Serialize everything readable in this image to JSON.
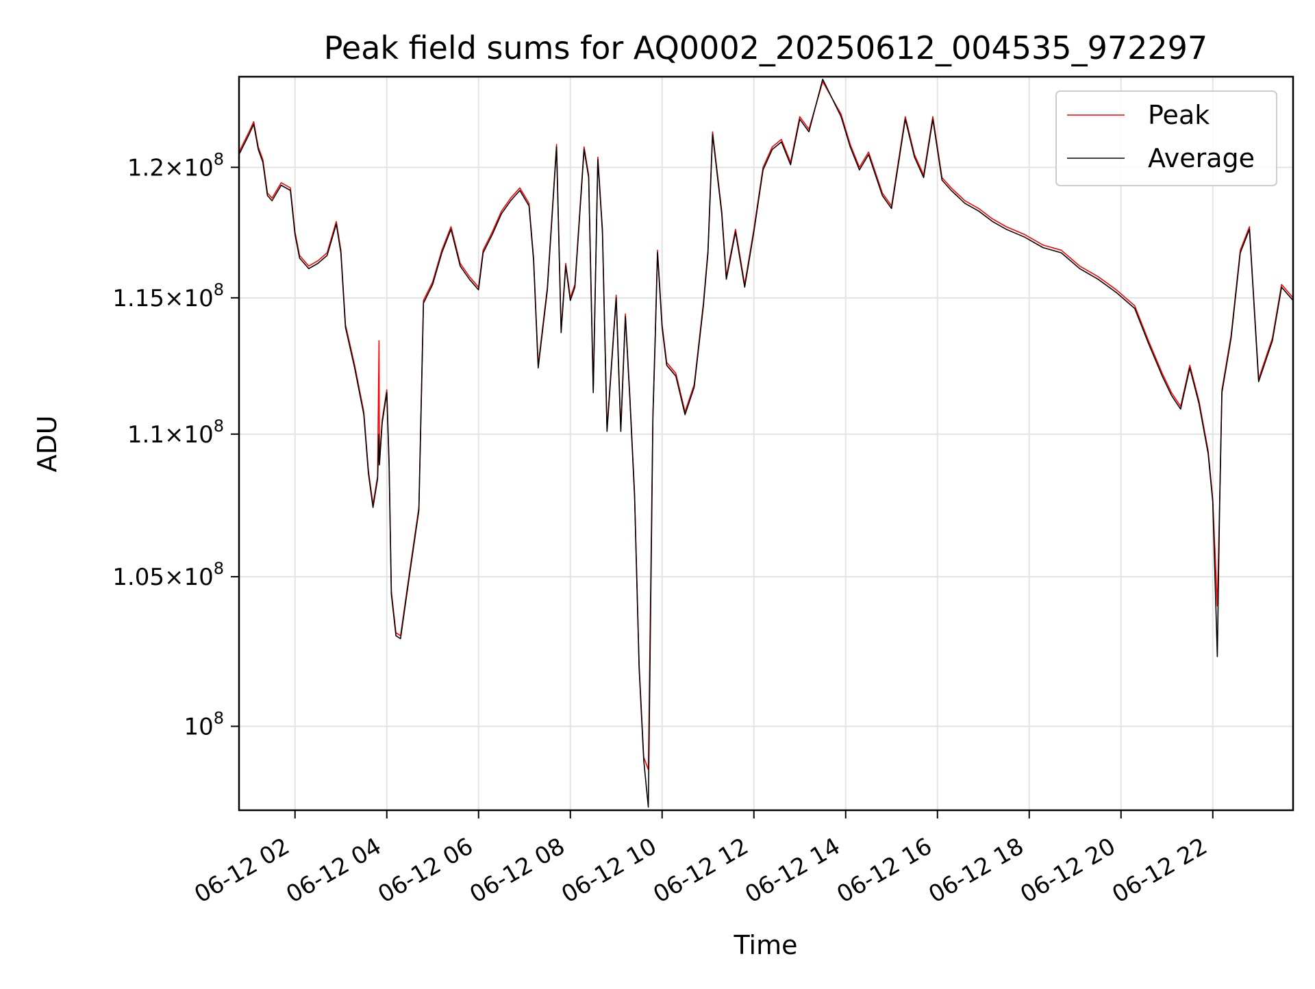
{
  "chart_data": {
    "type": "line",
    "title": "Peak field sums for AQ0002_20250612_004535_972297",
    "xlabel": "Time",
    "ylabel": "ADU",
    "x_tick_labels": [
      "06-12 02",
      "06-12 04",
      "06-12 06",
      "06-12 08",
      "06-12 10",
      "06-12 12",
      "06-12 14",
      "06-12 16",
      "06-12 18",
      "06-12 20",
      "06-12 22"
    ],
    "x_tick_hours": [
      2,
      4,
      6,
      8,
      10,
      12,
      14,
      16,
      18,
      20,
      22
    ],
    "xlim_hours": [
      0.78,
      23.75
    ],
    "y_scale": "log",
    "y_ticks": [
      {
        "value": 100000000,
        "mantissa": "",
        "exp": "8"
      },
      {
        "value": 105000000,
        "mantissa": "1.05",
        "exp": "8"
      },
      {
        "value": 110000000,
        "mantissa": "1.1",
        "exp": "8"
      },
      {
        "value": 115000000,
        "mantissa": "1.15",
        "exp": "8"
      },
      {
        "value": 120000000,
        "mantissa": "1.2",
        "exp": "8"
      }
    ],
    "ylim": [
      97300000,
      123600000
    ],
    "grid": true,
    "legend_position": "top-right",
    "x_unit": "hours on 2025-06-12",
    "series": [
      {
        "name": "Peak",
        "color": "#ff0000",
        "x": [
          0.78,
          1.0,
          1.1,
          1.2,
          1.3,
          1.4,
          1.5,
          1.7,
          1.9,
          2.0,
          2.1,
          2.3,
          2.5,
          2.7,
          2.9,
          3.0,
          3.1,
          3.3,
          3.5,
          3.6,
          3.7,
          3.8,
          3.83,
          3.84,
          3.9,
          4.0,
          4.05,
          4.1,
          4.2,
          4.3,
          4.5,
          4.7,
          4.8,
          5.0,
          5.2,
          5.4,
          5.6,
          5.8,
          6.0,
          6.1,
          6.3,
          6.5,
          6.7,
          6.9,
          7.1,
          7.2,
          7.3,
          7.5,
          7.7,
          7.8,
          7.9,
          8.0,
          8.1,
          8.3,
          8.4,
          8.5,
          8.6,
          8.7,
          8.8,
          9.0,
          9.1,
          9.2,
          9.3,
          9.4,
          9.5,
          9.6,
          9.7,
          9.8,
          9.85,
          9.9,
          10.0,
          10.1,
          10.3,
          10.5,
          10.7,
          10.9,
          11.0,
          11.1,
          11.3,
          11.4,
          11.6,
          11.8,
          12.0,
          12.2,
          12.4,
          12.6,
          12.8,
          13.0,
          13.2,
          13.5,
          13.9,
          14.1,
          14.3,
          14.5,
          14.8,
          15.0,
          15.3,
          15.5,
          15.7,
          15.9,
          16.1,
          16.3,
          16.6,
          16.9,
          17.2,
          17.5,
          17.9,
          18.3,
          18.7,
          19.1,
          19.5,
          19.9,
          20.3,
          20.6,
          20.9,
          21.1,
          21.3,
          21.5,
          21.7,
          21.9,
          22.0,
          22.1,
          22.15,
          22.2,
          22.4,
          22.6,
          22.8,
          23.0,
          23.3,
          23.5,
          23.75
        ],
        "values": [
          120600000,
          121400000,
          121800000,
          120800000,
          120300000,
          119000000,
          118800000,
          119400000,
          119200000,
          117500000,
          116600000,
          116200000,
          116400000,
          116700000,
          117900000,
          116800000,
          114000000,
          112500000,
          110800000,
          108700000,
          107500000,
          108500000,
          113400000,
          109000000,
          110500000,
          111600000,
          109000000,
          104500000,
          103100000,
          103000000,
          105200000,
          107400000,
          114900000,
          115600000,
          116800000,
          117700000,
          116300000,
          115800000,
          115400000,
          116800000,
          117500000,
          118300000,
          118800000,
          119200000,
          118600000,
          116500000,
          112500000,
          115400000,
          120900000,
          113800000,
          116300000,
          115000000,
          115500000,
          120800000,
          119700000,
          111600000,
          120400000,
          117600000,
          110200000,
          115100000,
          110200000,
          114400000,
          111300000,
          107900000,
          102000000,
          99000000,
          98600000,
          110700000,
          113600000,
          116800000,
          114000000,
          112600000,
          112200000,
          110800000,
          111800000,
          114800000,
          116800000,
          121400000,
          118300000,
          115800000,
          117600000,
          115500000,
          117600000,
          120000000,
          120800000,
          121100000,
          120200000,
          122000000,
          121500000,
          123400000,
          122100000,
          120900000,
          120000000,
          120600000,
          119000000,
          118500000,
          122000000,
          120500000,
          119700000,
          122000000,
          119600000,
          119200000,
          118700000,
          118400000,
          118000000,
          117700000,
          117400000,
          117000000,
          116800000,
          116200000,
          115800000,
          115300000,
          114700000,
          113400000,
          112200000,
          111500000,
          111000000,
          112500000,
          111200000,
          109400000,
          107700000,
          104000000,
          107600000,
          111600000,
          113600000,
          116800000,
          117700000,
          112000000,
          113500000,
          115500000,
          115000000
        ]
      },
      {
        "name": "Average",
        "color": "#000000",
        "x": [
          0.78,
          1.0,
          1.1,
          1.2,
          1.3,
          1.4,
          1.5,
          1.7,
          1.9,
          2.0,
          2.1,
          2.3,
          2.5,
          2.7,
          2.9,
          3.0,
          3.1,
          3.3,
          3.5,
          3.6,
          3.7,
          3.8,
          3.83,
          3.84,
          3.9,
          4.0,
          4.05,
          4.1,
          4.2,
          4.3,
          4.5,
          4.7,
          4.8,
          5.0,
          5.2,
          5.4,
          5.6,
          5.8,
          6.0,
          6.1,
          6.3,
          6.5,
          6.7,
          6.9,
          7.1,
          7.2,
          7.3,
          7.5,
          7.7,
          7.8,
          7.9,
          8.0,
          8.1,
          8.3,
          8.4,
          8.5,
          8.6,
          8.7,
          8.8,
          9.0,
          9.1,
          9.2,
          9.3,
          9.4,
          9.5,
          9.6,
          9.7,
          9.8,
          9.85,
          9.9,
          10.0,
          10.1,
          10.3,
          10.5,
          10.7,
          10.9,
          11.0,
          11.1,
          11.3,
          11.4,
          11.6,
          11.8,
          12.0,
          12.2,
          12.4,
          12.6,
          12.8,
          13.0,
          13.2,
          13.5,
          13.9,
          14.1,
          14.3,
          14.5,
          14.8,
          15.0,
          15.3,
          15.5,
          15.7,
          15.9,
          16.1,
          16.3,
          16.6,
          16.9,
          17.2,
          17.5,
          17.9,
          18.3,
          18.7,
          19.1,
          19.5,
          19.9,
          20.3,
          20.6,
          20.9,
          21.1,
          21.3,
          21.5,
          21.7,
          21.9,
          22.0,
          22.1,
          22.15,
          22.2,
          22.4,
          22.6,
          22.8,
          23.0,
          23.3,
          23.5,
          23.75
        ],
        "values": [
          120500000,
          121300000,
          121700000,
          120700000,
          120200000,
          118900000,
          118700000,
          119300000,
          119100000,
          117400000,
          116500000,
          116100000,
          116300000,
          116600000,
          117800000,
          116700000,
          113900000,
          112400000,
          110700000,
          108600000,
          107400000,
          108400000,
          110000000,
          108900000,
          110400000,
          111500000,
          108900000,
          104400000,
          103000000,
          102900000,
          105100000,
          107300000,
          114800000,
          115500000,
          116700000,
          117600000,
          116200000,
          115700000,
          115300000,
          116700000,
          117400000,
          118200000,
          118700000,
          119100000,
          118500000,
          116400000,
          112400000,
          115300000,
          120800000,
          113700000,
          116200000,
          114900000,
          115400000,
          120700000,
          119600000,
          111500000,
          120300000,
          117500000,
          110100000,
          115000000,
          110100000,
          114300000,
          111200000,
          107800000,
          101900000,
          98900000,
          97400000,
          110600000,
          113500000,
          116700000,
          113900000,
          112500000,
          112100000,
          110700000,
          111700000,
          114700000,
          116700000,
          121300000,
          118200000,
          115700000,
          117500000,
          115400000,
          117500000,
          119900000,
          120700000,
          121000000,
          120100000,
          121900000,
          121400000,
          123500000,
          122000000,
          120800000,
          119900000,
          120500000,
          118900000,
          118400000,
          121900000,
          120400000,
          119600000,
          121900000,
          119500000,
          119100000,
          118600000,
          118300000,
          117900000,
          117600000,
          117300000,
          116900000,
          116700000,
          116100000,
          115700000,
          115200000,
          114600000,
          113300000,
          112100000,
          111400000,
          110900000,
          112400000,
          111100000,
          109300000,
          107600000,
          102300000,
          107500000,
          111500000,
          113500000,
          116700000,
          117600000,
          111900000,
          113400000,
          115400000,
          114900000
        ]
      }
    ]
  }
}
